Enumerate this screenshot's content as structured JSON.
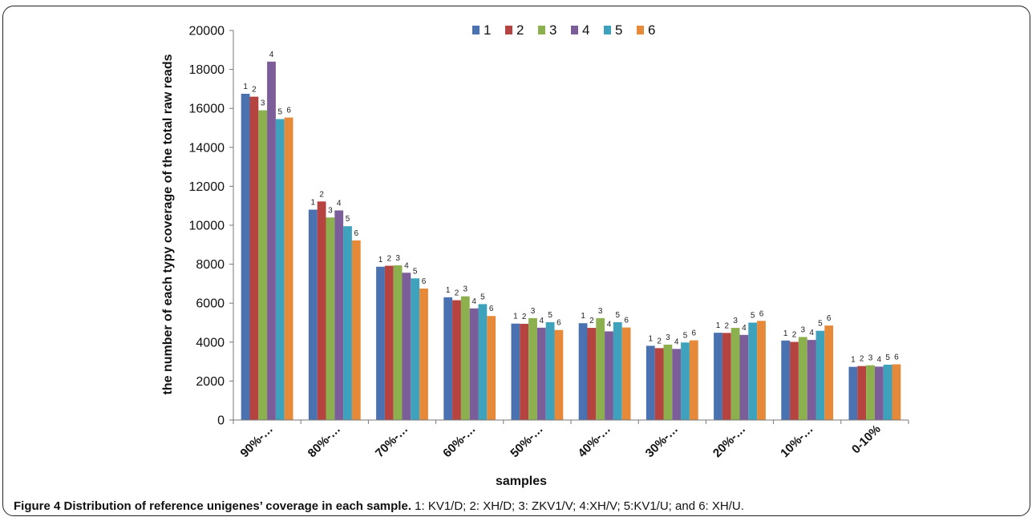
{
  "chart_data": {
    "type": "bar",
    "xlabel": "samples",
    "ylabel": "the number of each typy coverage of the total raw reads",
    "ylim": [
      0,
      20000
    ],
    "yticks": [
      0,
      2000,
      4000,
      6000,
      8000,
      10000,
      12000,
      14000,
      16000,
      18000,
      20000
    ],
    "grid": false,
    "legend_position": "top-center",
    "categories": [
      "90%-…",
      "80%-…",
      "70%-…",
      "60%-…",
      "50%-…",
      "40%-…",
      "30%-…",
      "20%-…",
      "10%-…",
      "0-10%"
    ],
    "series": [
      {
        "name": "1",
        "color": "#4a72b0",
        "values": [
          16750,
          10800,
          7870,
          6300,
          4950,
          4970,
          3810,
          4480,
          4080,
          2730
        ]
      },
      {
        "name": "2",
        "color": "#b5433f",
        "values": [
          16600,
          11220,
          7920,
          6150,
          4940,
          4730,
          3690,
          4470,
          4010,
          2770
        ]
      },
      {
        "name": "3",
        "color": "#8db04e",
        "values": [
          15900,
          10400,
          7940,
          6350,
          5230,
          5230,
          3870,
          4730,
          4260,
          2810
        ]
      },
      {
        "name": "4",
        "color": "#7b5d99",
        "values": [
          18400,
          10760,
          7560,
          5730,
          4740,
          4550,
          3650,
          4370,
          4110,
          2740
        ]
      },
      {
        "name": "5",
        "color": "#3ea2bd",
        "values": [
          15450,
          9950,
          7270,
          5950,
          5020,
          5020,
          3980,
          5000,
          4580,
          2840
        ]
      },
      {
        "name": "6",
        "color": "#e68a3a",
        "values": [
          15530,
          9220,
          6750,
          5340,
          4620,
          4750,
          4090,
          5090,
          4850,
          2860
        ]
      }
    ]
  },
  "caption": {
    "bold": "Figure 4 Distribution of reference unigenes’ coverage in each sample.",
    "rest": " 1: KV1/D; 2: XH/D; 3: ZKV1/V; 4:XH/V; 5:KV1/U; and 6: XH/U."
  }
}
